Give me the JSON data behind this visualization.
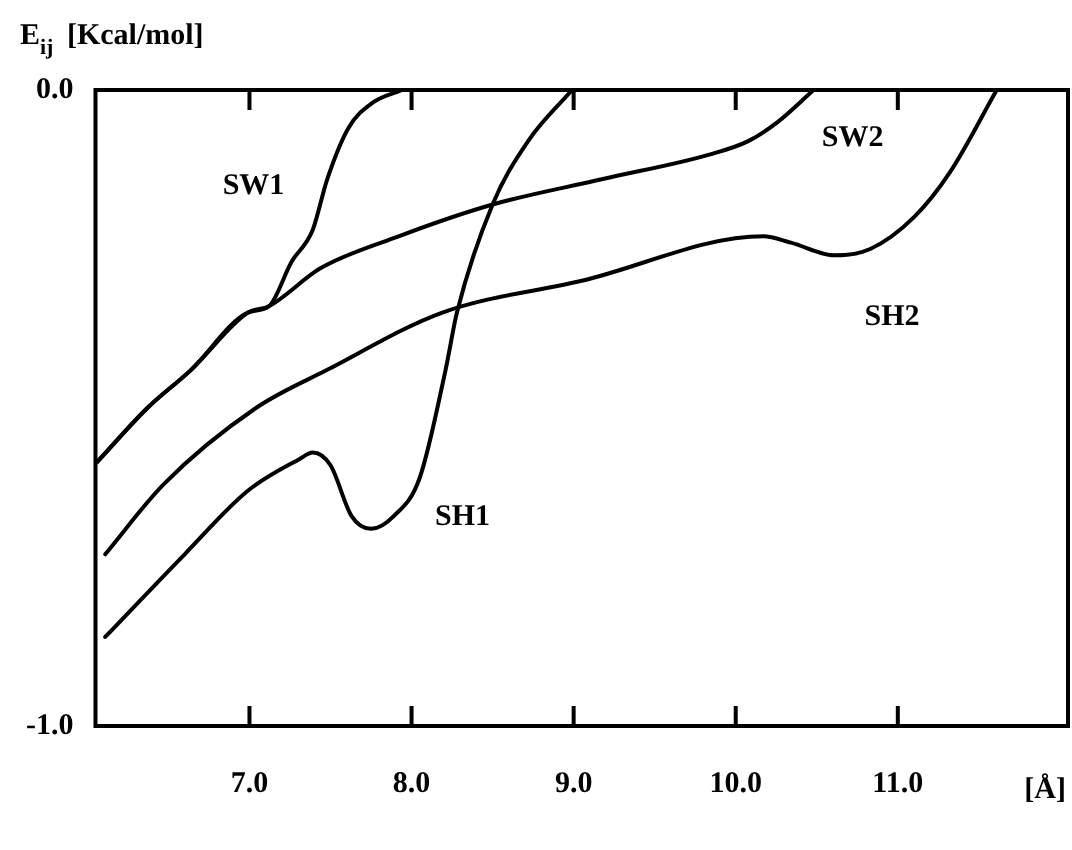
{
  "chart_data": {
    "type": "line",
    "ylabel": "E$_{ij}$ [Kcal/mol]",
    "xlabel": "[Å]",
    "xlim": [
      6.05,
      12.05
    ],
    "ylim": [
      -1.0,
      0.0
    ],
    "xticks": [
      {
        "value": 7,
        "label": "7.0"
      },
      {
        "value": 8,
        "label": "8.0"
      },
      {
        "value": 9,
        "label": "9.0"
      },
      {
        "value": 10,
        "label": "10.0"
      },
      {
        "value": 11,
        "label": "11.0"
      }
    ],
    "yticks": [
      {
        "value": -1,
        "label": "-1.0"
      },
      {
        "value": 0,
        "label": "0.0"
      }
    ],
    "marker": "none",
    "line_style": "solid",
    "series": [
      {
        "name": "SW1",
        "color": "#000000",
        "x": [
          6.06,
          6.37,
          6.64,
          6.99,
          7.12,
          7.26,
          7.39,
          7.48,
          7.61,
          7.76,
          7.94
        ],
        "values": [
          -0.585,
          -0.5,
          -0.44,
          -0.35,
          -0.34,
          -0.27,
          -0.22,
          -0.14,
          -0.06,
          -0.02,
          0
        ]
      },
      {
        "name": "SW2",
        "color": "#000000",
        "x": [
          6.06,
          6.37,
          6.64,
          6.99,
          7.12,
          7.44,
          7.92,
          8.5,
          9.18,
          9.86,
          10.08,
          10.26,
          10.48
        ],
        "values": [
          -0.585,
          -0.5,
          -0.44,
          -0.35,
          -0.34,
          -0.28,
          -0.23,
          -0.18,
          -0.14,
          -0.1,
          -0.08,
          -0.05,
          0
        ]
      },
      {
        "name": "SH2",
        "color": "#000000",
        "x": [
          6.11,
          6.47,
          7.04,
          7.48,
          8.19,
          9.05,
          10.17,
          10.34,
          10.61,
          10.83,
          11.1,
          11.32,
          11.61
        ],
        "values": [
          -0.73,
          -0.62,
          -0.5,
          -0.44,
          -0.35,
          -0.3,
          -0.23,
          -0.24,
          -0.26,
          -0.25,
          -0.2,
          -0.13,
          0
        ]
      },
      {
        "name": "SH1",
        "color": "#000000",
        "x": [
          6.11,
          6.6,
          6.99,
          7.31,
          7.39,
          7.5,
          7.63,
          7.75,
          7.89,
          8.05,
          8.21,
          8.28,
          8.5,
          8.72,
          8.99
        ],
        "values": [
          -0.86,
          -0.73,
          -0.63,
          -0.58,
          -0.57,
          -0.59,
          -0.67,
          -0.69,
          -0.67,
          -0.61,
          -0.44,
          -0.35,
          -0.18,
          -0.08,
          0
        ]
      }
    ]
  }
}
